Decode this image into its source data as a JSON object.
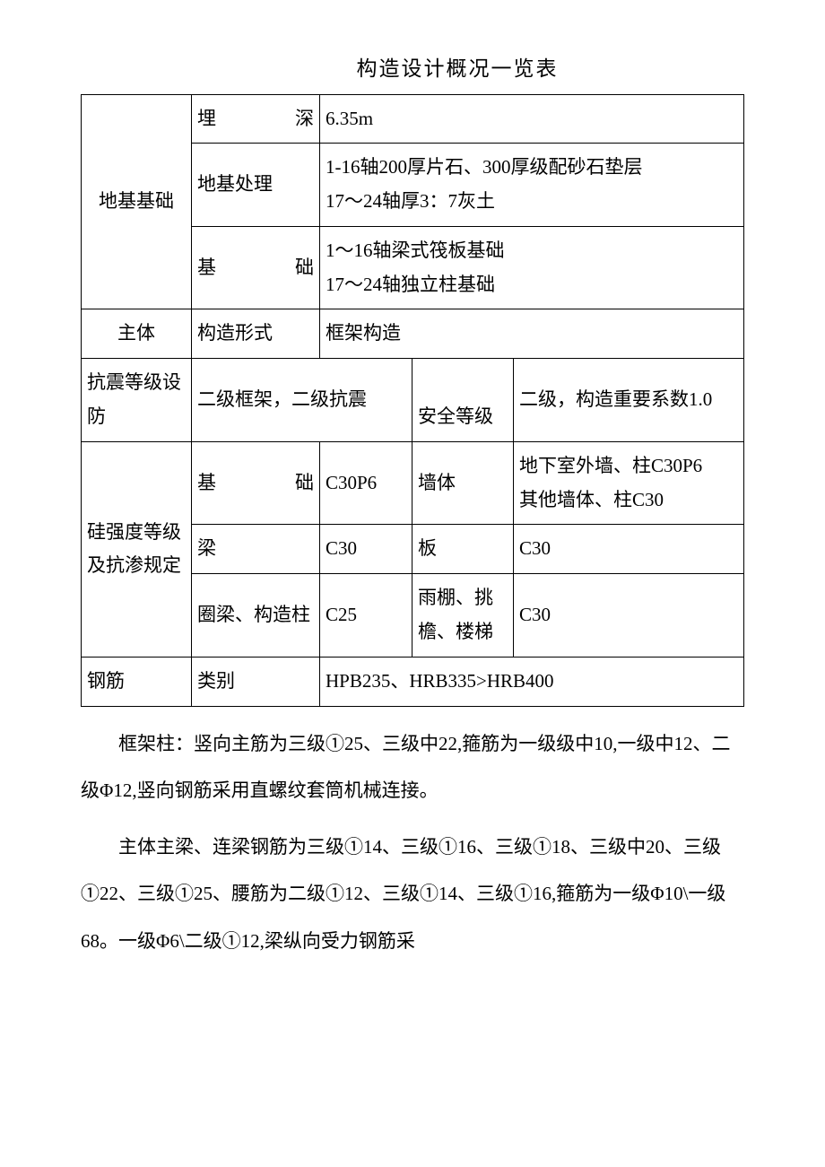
{
  "title": "构造设计概况一览表",
  "table": {
    "r1": {
      "c1": "地基基础",
      "c2": "埋　　深",
      "c3": "6.35m"
    },
    "r2": {
      "c2": "地基处理",
      "c3": "1-16轴200厚片石、300厚级配砂石垫层\n17～24轴厚3：7灰土"
    },
    "r3": {
      "c2": "基　　础",
      "c3": "1～16轴梁式筏板基础\n17～24轴独立柱基础"
    },
    "r4": {
      "c1": "主体",
      "c2": "构造形式",
      "c3": "框架构造"
    },
    "r5": {
      "c1": "抗震等级设防",
      "c2": "二级框架，二级抗震",
      "c3": "安全等级",
      "c4": "二级，构造重要系数1.0"
    },
    "r6": {
      "c1": "硅强度等级及抗渗规定",
      "c2": "基　　础",
      "c3": "C30P6",
      "c4": "墙体",
      "c5": "地下室外墙、柱C30P6\n其他墙体、柱C30"
    },
    "r7": {
      "c2": "梁",
      "c3": "C30",
      "c4": "板",
      "c5": "C30"
    },
    "r8": {
      "c2": "圈梁、构造柱",
      "c3": "C25",
      "c4": "雨棚、挑檐、楼梯",
      "c5": "C30"
    },
    "r9": {
      "c1": "钢筋",
      "c2": "类别",
      "c3": "HPB235、HRB335>HRB400"
    }
  },
  "paragraphs": {
    "p1": "框架柱：竖向主筋为三级①25、三级中22,箍筋为一级级中10,一级中12、二级Φ12,竖向钢筋采用直螺纹套筒机械连接。",
    "p2": "主体主梁、连梁钢筋为三级①14、三级①16、三级①18、三级中20、三级①22、三级①25、腰筋为二级①12、三级①14、三级①16,箍筋为一级Φ10\\一级68。一级Φ6\\二级①12,梁纵向受力钢筋采"
  }
}
